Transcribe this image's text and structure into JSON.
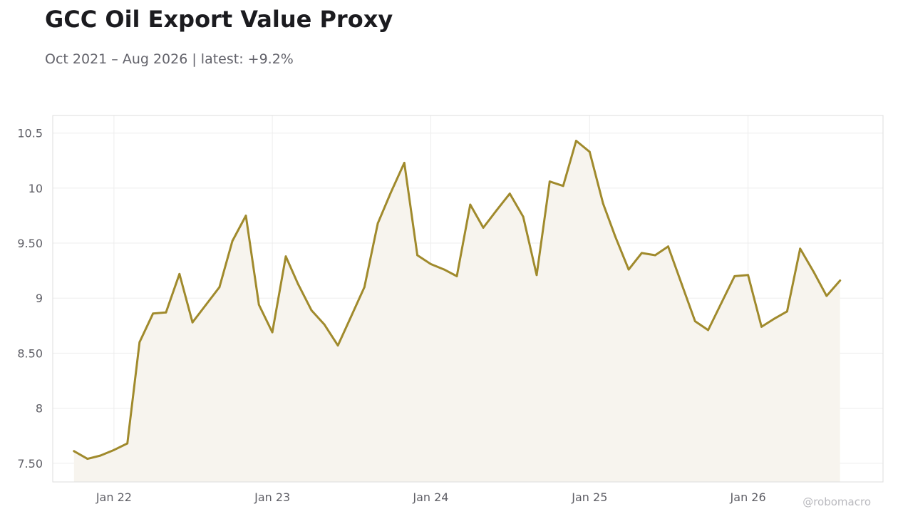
{
  "chart_data": {
    "type": "area",
    "title": "GCC Oil Export Value Proxy",
    "subtitle": "Oct 2021 – Aug 2026 | latest: +9.2%",
    "xlabel": "",
    "ylabel": "",
    "ylim": [
      7.33,
      10.66
    ],
    "xlim": [
      "2021-08-13",
      "2026-11-08"
    ],
    "grid": true,
    "legend": "none",
    "y_ticks": [
      {
        "value": 7.5,
        "label": "7.50"
      },
      {
        "value": 8.0,
        "label": "8"
      },
      {
        "value": 8.5,
        "label": "8.50"
      },
      {
        "value": 9.0,
        "label": "9"
      },
      {
        "value": 9.5,
        "label": "9.50"
      },
      {
        "value": 10.0,
        "label": "10"
      },
      {
        "value": 10.5,
        "label": "10.5"
      }
    ],
    "x_ticks": [
      {
        "date": "2022-01-01",
        "label": "Jan 22"
      },
      {
        "date": "2023-01-01",
        "label": "Jan 23"
      },
      {
        "date": "2024-01-01",
        "label": "Jan 24"
      },
      {
        "date": "2025-01-01",
        "label": "Jan 25"
      },
      {
        "date": "2026-01-01",
        "label": "Jan 26"
      }
    ],
    "series": [
      {
        "color": "#a08a2c",
        "fill": "#f7f4ee",
        "x": [
          "2021-10-01",
          "2021-11-01",
          "2021-12-01",
          "2022-01-01",
          "2022-02-01",
          "2022-03-01",
          "2022-04-01",
          "2022-05-01",
          "2022-06-01",
          "2022-07-01",
          "2022-08-01",
          "2022-09-01",
          "2022-10-01",
          "2022-11-01",
          "2022-12-01",
          "2023-01-01",
          "2023-02-01",
          "2023-03-01",
          "2023-04-01",
          "2023-05-01",
          "2023-06-01",
          "2023-07-01",
          "2023-08-01",
          "2023-09-01",
          "2023-10-01",
          "2023-11-01",
          "2023-12-01",
          "2024-01-01",
          "2024-02-01",
          "2024-03-01",
          "2024-04-01",
          "2024-05-01",
          "2024-06-01",
          "2024-07-01",
          "2024-08-01",
          "2024-09-01",
          "2024-10-01",
          "2024-11-01",
          "2024-12-01",
          "2025-01-01",
          "2025-02-01",
          "2025-03-01",
          "2025-04-01",
          "2025-05-01",
          "2025-06-01",
          "2025-07-01",
          "2025-08-01",
          "2025-09-01",
          "2025-10-01",
          "2025-11-01",
          "2025-12-01",
          "2026-01-01",
          "2026-02-01",
          "2026-03-01",
          "2026-04-01",
          "2026-05-01",
          "2026-06-01",
          "2026-07-01",
          "2026-08-01"
        ],
        "values": [
          7.61,
          7.54,
          7.57,
          7.62,
          7.68,
          8.6,
          8.86,
          8.87,
          9.22,
          8.78,
          8.94,
          9.1,
          9.52,
          9.75,
          8.94,
          8.69,
          9.38,
          9.13,
          8.89,
          8.76,
          8.57,
          8.83,
          9.1,
          9.68,
          9.96,
          10.23,
          9.39,
          9.31,
          9.26,
          9.2,
          9.85,
          9.64,
          9.8,
          9.95,
          9.74,
          9.21,
          10.06,
          10.02,
          10.43,
          10.33,
          9.86,
          9.56,
          9.26,
          9.41,
          9.39,
          9.47,
          9.13,
          8.79,
          8.71,
          8.96,
          9.2,
          9.21,
          8.74,
          8.81,
          8.88,
          9.45,
          9.24,
          9.02,
          9.16
        ]
      }
    ]
  },
  "watermark": "@robomacro"
}
